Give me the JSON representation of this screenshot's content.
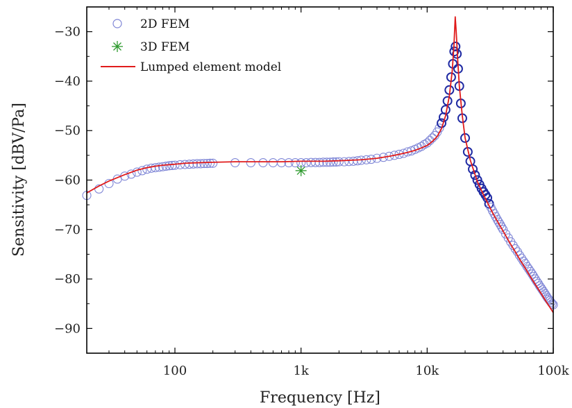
{
  "chart_data": {
    "type": "line",
    "xlabel": "Frequency [Hz]",
    "ylabel": "Sensitivity [dBV/Pa]",
    "xscale": "log",
    "xlim": [
      20,
      100000
    ],
    "ylim": [
      -95,
      -25
    ],
    "x_ticks": [
      {
        "value": 100,
        "label": "100"
      },
      {
        "value": 1000,
        "label": "1k"
      },
      {
        "value": 10000,
        "label": "10k"
      },
      {
        "value": 100000,
        "label": "100k"
      }
    ],
    "y_ticks": [
      -30,
      -40,
      -50,
      -60,
      -70,
      -80,
      -90
    ],
    "grid": false,
    "legend_position": "top-left",
    "legend": [
      {
        "label": "2D FEM",
        "marker": "circle",
        "color": "#7f86d6"
      },
      {
        "label": "3D FEM",
        "marker": "asterisk",
        "color": "#2e9a2e"
      },
      {
        "label": "Lumped element model",
        "marker": "line",
        "color": "#e01b1b"
      }
    ],
    "series": [
      {
        "name": "2D FEM",
        "style": "markers-circle",
        "color": "#7f86d6",
        "dense_color": "#1f2aa3",
        "points": [
          [
            20,
            -63.1
          ],
          [
            25,
            -61.8
          ],
          [
            30,
            -60.7
          ],
          [
            35,
            -59.8
          ],
          [
            40,
            -59.2
          ],
          [
            45,
            -58.8
          ],
          [
            50,
            -58.4
          ],
          [
            55,
            -58.1
          ],
          [
            60,
            -57.8
          ],
          [
            65,
            -57.6
          ],
          [
            70,
            -57.5
          ],
          [
            75,
            -57.4
          ],
          [
            80,
            -57.3
          ],
          [
            85,
            -57.2
          ],
          [
            90,
            -57.1
          ],
          [
            95,
            -57.05
          ],
          [
            100,
            -57.0
          ],
          [
            110,
            -56.9
          ],
          [
            120,
            -56.85
          ],
          [
            130,
            -56.8
          ],
          [
            140,
            -56.75
          ],
          [
            150,
            -56.7
          ],
          [
            160,
            -56.7
          ],
          [
            170,
            -56.65
          ],
          [
            180,
            -56.65
          ],
          [
            190,
            -56.6
          ],
          [
            200,
            -56.6
          ],
          [
            300,
            -56.5
          ],
          [
            400,
            -56.5
          ],
          [
            500,
            -56.5
          ],
          [
            600,
            -56.5
          ],
          [
            700,
            -56.5
          ],
          [
            800,
            -56.5
          ],
          [
            900,
            -56.5
          ],
          [
            1000,
            -56.5
          ],
          [
            1100,
            -56.5
          ],
          [
            1200,
            -56.45
          ],
          [
            1300,
            -56.45
          ],
          [
            1400,
            -56.45
          ],
          [
            1500,
            -56.4
          ],
          [
            1600,
            -56.4
          ],
          [
            1700,
            -56.4
          ],
          [
            1800,
            -56.35
          ],
          [
            1900,
            -56.35
          ],
          [
            2000,
            -56.3
          ],
          [
            2200,
            -56.3
          ],
          [
            2400,
            -56.25
          ],
          [
            2600,
            -56.2
          ],
          [
            2800,
            -56.1
          ],
          [
            3000,
            -56.0
          ],
          [
            3300,
            -55.9
          ],
          [
            3600,
            -55.8
          ],
          [
            4000,
            -55.6
          ],
          [
            4500,
            -55.4
          ],
          [
            5000,
            -55.2
          ],
          [
            5500,
            -55.0
          ],
          [
            6000,
            -54.8
          ],
          [
            6500,
            -54.6
          ],
          [
            7000,
            -54.3
          ],
          [
            7500,
            -54.1
          ],
          [
            8000,
            -53.8
          ],
          [
            8500,
            -53.5
          ],
          [
            9000,
            -53.2
          ],
          [
            9500,
            -52.8
          ],
          [
            10000,
            -52.5
          ],
          [
            10500,
            -52.0
          ],
          [
            11000,
            -51.5
          ],
          [
            11500,
            -51.0
          ],
          [
            12000,
            -50.3
          ],
          [
            12500,
            -49.5
          ],
          [
            13000,
            -48.5
          ],
          [
            13500,
            -47.3
          ],
          [
            14000,
            -45.8
          ],
          [
            14500,
            -44.0
          ],
          [
            15000,
            -41.8
          ],
          [
            15500,
            -39.2
          ],
          [
            16000,
            -36.5
          ],
          [
            16400,
            -34.0
          ],
          [
            16800,
            -33.0
          ],
          [
            17200,
            -34.5
          ],
          [
            17600,
            -37.5
          ],
          [
            18000,
            -41.0
          ],
          [
            18500,
            -44.5
          ],
          [
            19000,
            -47.5
          ],
          [
            20000,
            -51.5
          ],
          [
            21000,
            -54.3
          ],
          [
            22000,
            -56.2
          ],
          [
            23000,
            -57.8
          ],
          [
            24000,
            -59.0
          ],
          [
            25000,
            -60.0
          ],
          [
            26000,
            -60.9
          ],
          [
            27000,
            -61.7
          ],
          [
            28000,
            -62.4
          ],
          [
            29000,
            -63.0
          ],
          [
            30000,
            -63.6
          ],
          [
            31000,
            -64.8
          ],
          [
            32000,
            -65.5
          ],
          [
            33000,
            -66.2
          ],
          [
            34000,
            -66.8
          ],
          [
            35000,
            -67.4
          ],
          [
            36000,
            -68.0
          ],
          [
            37000,
            -68.5
          ],
          [
            38000,
            -69.0
          ],
          [
            39000,
            -69.5
          ],
          [
            40000,
            -70.0
          ],
          [
            42000,
            -70.9
          ],
          [
            44000,
            -71.7
          ],
          [
            46000,
            -72.5
          ],
          [
            48000,
            -73.2
          ],
          [
            50000,
            -73.9
          ],
          [
            52000,
            -74.5
          ],
          [
            54000,
            -75.2
          ],
          [
            56000,
            -75.8
          ],
          [
            58000,
            -76.4
          ],
          [
            60000,
            -76.9
          ],
          [
            62000,
            -77.5
          ],
          [
            64000,
            -78.0
          ],
          [
            66000,
            -78.5
          ],
          [
            68000,
            -79.0
          ],
          [
            70000,
            -79.5
          ],
          [
            72000,
            -80.0
          ],
          [
            74000,
            -80.5
          ],
          [
            76000,
            -80.9
          ],
          [
            78000,
            -81.4
          ],
          [
            80000,
            -81.8
          ],
          [
            82000,
            -82.2
          ],
          [
            84000,
            -82.6
          ],
          [
            86000,
            -83.0
          ],
          [
            88000,
            -83.4
          ],
          [
            90000,
            -83.8
          ],
          [
            92000,
            -84.1
          ],
          [
            94000,
            -84.4
          ],
          [
            96000,
            -84.7
          ],
          [
            98000,
            -85.0
          ],
          [
            100000,
            -85.2
          ]
        ]
      },
      {
        "name": "3D FEM",
        "style": "markers-asterisk",
        "color": "#2e9a2e",
        "points": [
          [
            1000,
            -58.1
          ]
        ]
      },
      {
        "name": "Lumped element model",
        "style": "line",
        "color": "#e01b1b",
        "points": [
          [
            20,
            -62.6
          ],
          [
            25,
            -61.2
          ],
          [
            30,
            -60.2
          ],
          [
            40,
            -58.9
          ],
          [
            50,
            -58.0
          ],
          [
            60,
            -57.5
          ],
          [
            70,
            -57.2
          ],
          [
            80,
            -57.0
          ],
          [
            100,
            -56.8
          ],
          [
            120,
            -56.6
          ],
          [
            150,
            -56.5
          ],
          [
            200,
            -56.4
          ],
          [
            300,
            -56.3
          ],
          [
            500,
            -56.3
          ],
          [
            700,
            -56.3
          ],
          [
            1000,
            -56.2
          ],
          [
            1500,
            -56.2
          ],
          [
            2000,
            -56.1
          ],
          [
            3000,
            -55.9
          ],
          [
            4000,
            -55.6
          ],
          [
            5000,
            -55.2
          ],
          [
            6000,
            -54.8
          ],
          [
            7000,
            -54.4
          ],
          [
            8000,
            -54.0
          ],
          [
            9000,
            -53.5
          ],
          [
            10000,
            -53.0
          ],
          [
            11000,
            -52.2
          ],
          [
            12000,
            -51.2
          ],
          [
            13000,
            -49.6
          ],
          [
            14000,
            -47.0
          ],
          [
            15000,
            -43.0
          ],
          [
            15800,
            -38.0
          ],
          [
            16300,
            -33.0
          ],
          [
            16700,
            -27.0
          ],
          [
            17000,
            -30.0
          ],
          [
            17500,
            -36.0
          ],
          [
            18000,
            -41.0
          ],
          [
            19000,
            -47.0
          ],
          [
            20000,
            -51.5
          ],
          [
            22000,
            -56.0
          ],
          [
            25000,
            -60.3
          ],
          [
            28000,
            -63.0
          ],
          [
            30000,
            -64.5
          ],
          [
            33000,
            -66.6
          ],
          [
            36000,
            -68.3
          ],
          [
            40000,
            -70.3
          ],
          [
            45000,
            -72.6
          ],
          [
            50000,
            -74.5
          ],
          [
            55000,
            -76.3
          ],
          [
            60000,
            -77.8
          ],
          [
            65000,
            -79.3
          ],
          [
            70000,
            -80.6
          ],
          [
            75000,
            -81.8
          ],
          [
            80000,
            -82.9
          ],
          [
            85000,
            -84.0
          ],
          [
            90000,
            -85.0
          ],
          [
            95000,
            -85.9
          ],
          [
            100000,
            -86.8
          ]
        ]
      }
    ]
  }
}
